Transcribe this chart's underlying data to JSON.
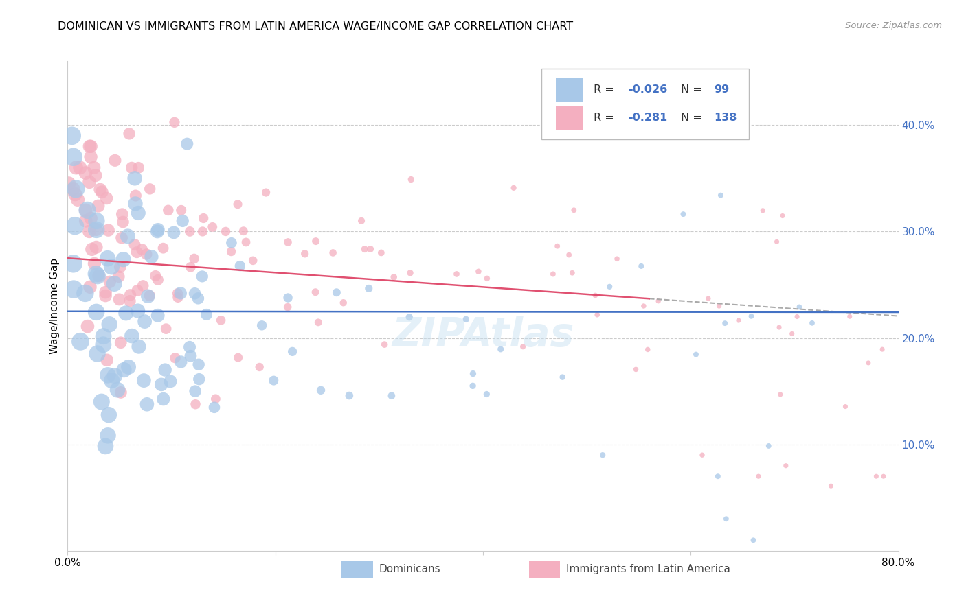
{
  "title": "DOMINICAN VS IMMIGRANTS FROM LATIN AMERICA WAGE/INCOME GAP CORRELATION CHART",
  "source": "Source: ZipAtlas.com",
  "ylabel": "Wage/Income Gap",
  "right_yticks": [
    "40.0%",
    "30.0%",
    "20.0%",
    "10.0%"
  ],
  "right_ytick_vals": [
    0.4,
    0.3,
    0.2,
    0.1
  ],
  "legend_label1": "Dominicans",
  "legend_label2": "Immigrants from Latin America",
  "R1": "-0.026",
  "N1": "99",
  "R2": "-0.281",
  "N2": "138",
  "color1": "#a8c8e8",
  "color2": "#f4afc0",
  "line_color1": "#4472c4",
  "line_color2": "#e05070",
  "watermark": "ZIPAtlas",
  "background": "#ffffff",
  "grid_color": "#cccccc",
  "legend_text_color": "#4472c4",
  "xlim": [
    0,
    0.8
  ],
  "ylim": [
    0,
    0.46
  ]
}
